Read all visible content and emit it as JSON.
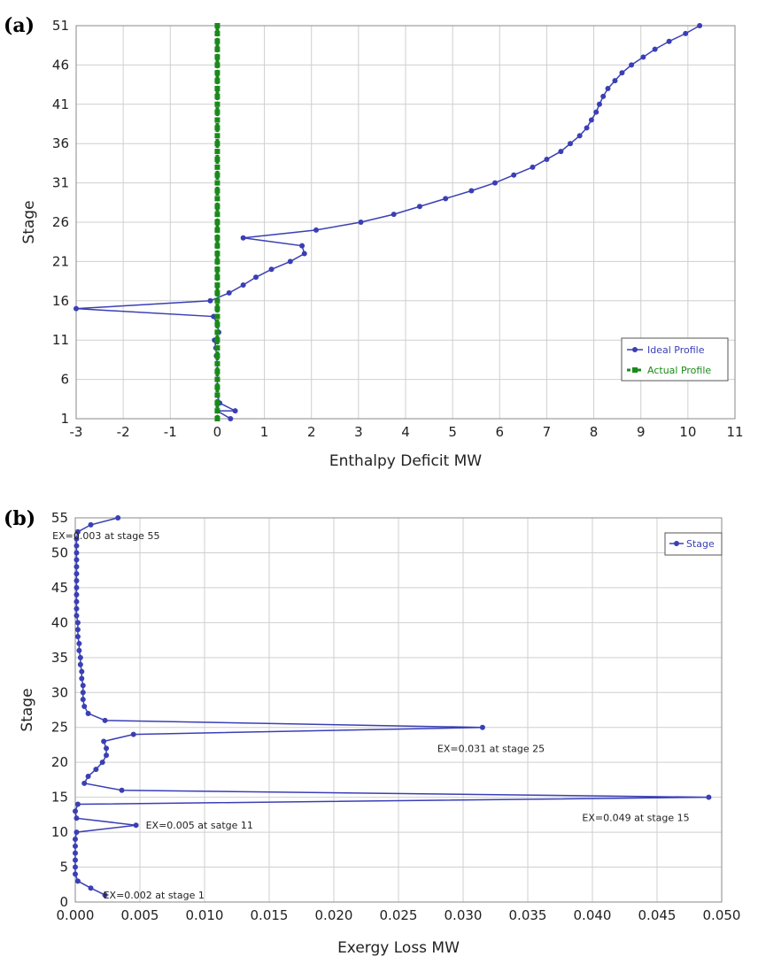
{
  "chart_data": [
    {
      "panel": "(a)",
      "type": "line",
      "xlabel": "Enthalpy Deficit MW",
      "ylabel": "Stage",
      "xlim": [
        -3,
        11
      ],
      "ylim": [
        1,
        51
      ],
      "xticks": [
        "-3",
        "-2",
        "-1",
        "0",
        "1",
        "2",
        "3",
        "4",
        "5",
        "6",
        "7",
        "8",
        "9",
        "10",
        "11"
      ],
      "yticks": [
        "1",
        "6",
        "11",
        "16",
        "21",
        "26",
        "31",
        "36",
        "41",
        "46",
        "51"
      ],
      "grid": true,
      "legend_position": "lower-right",
      "series": [
        {
          "name": "Ideal Profile",
          "color": "#3a3fb5",
          "marker": "circle",
          "points": [
            [
              0.28,
              1
            ],
            [
              0.0,
              2
            ],
            [
              0.0,
              2
            ],
            [
              0.38,
              2
            ],
            [
              0.05,
              3
            ],
            [
              0.0,
              4
            ],
            [
              0.0,
              5
            ],
            [
              0.0,
              6
            ],
            [
              0.0,
              7
            ],
            [
              0.0,
              8
            ],
            [
              -0.02,
              9
            ],
            [
              -0.03,
              10
            ],
            [
              -0.06,
              11
            ],
            [
              0.03,
              12
            ],
            [
              0.0,
              13
            ],
            [
              -0.08,
              14
            ],
            [
              -3.0,
              15
            ],
            [
              -0.15,
              16
            ],
            [
              0.25,
              17
            ],
            [
              0.55,
              18
            ],
            [
              0.82,
              19
            ],
            [
              1.15,
              20
            ],
            [
              1.55,
              21
            ],
            [
              1.85,
              22
            ],
            [
              1.8,
              23
            ],
            [
              0.55,
              24
            ],
            [
              2.1,
              25
            ],
            [
              3.05,
              26
            ],
            [
              3.75,
              27
            ],
            [
              4.3,
              28
            ],
            [
              4.85,
              29
            ],
            [
              5.4,
              30
            ],
            [
              5.9,
              31
            ],
            [
              6.3,
              32
            ],
            [
              6.7,
              33
            ],
            [
              7.0,
              34
            ],
            [
              7.3,
              35
            ],
            [
              7.5,
              36
            ],
            [
              7.7,
              37
            ],
            [
              7.85,
              38
            ],
            [
              7.95,
              39
            ],
            [
              8.05,
              40
            ],
            [
              8.12,
              41
            ],
            [
              8.2,
              42
            ],
            [
              8.3,
              43
            ],
            [
              8.45,
              44
            ],
            [
              8.6,
              45
            ],
            [
              8.8,
              46
            ],
            [
              9.05,
              47
            ],
            [
              9.3,
              48
            ],
            [
              9.6,
              49
            ],
            [
              9.95,
              50
            ],
            [
              10.25,
              51
            ]
          ]
        },
        {
          "name": "Actual Profile",
          "color": "#1a8a1a",
          "marker": "square",
          "points": [
            [
              0,
              1
            ],
            [
              0,
              2
            ],
            [
              0,
              3
            ],
            [
              0,
              4
            ],
            [
              0,
              5
            ],
            [
              0,
              6
            ],
            [
              0,
              7
            ],
            [
              0,
              8
            ],
            [
              0,
              9
            ],
            [
              0,
              10
            ],
            [
              0,
              11
            ],
            [
              0,
              12
            ],
            [
              0,
              13
            ],
            [
              0,
              14
            ],
            [
              0,
              15
            ],
            [
              0,
              16
            ],
            [
              0,
              17
            ],
            [
              0,
              18
            ],
            [
              0,
              19
            ],
            [
              0,
              20
            ],
            [
              0,
              21
            ],
            [
              0,
              22
            ],
            [
              0,
              23
            ],
            [
              0,
              24
            ],
            [
              0,
              25
            ],
            [
              0,
              26
            ],
            [
              0,
              27
            ],
            [
              0,
              28
            ],
            [
              0,
              29
            ],
            [
              0,
              30
            ],
            [
              0,
              31
            ],
            [
              0,
              32
            ],
            [
              0,
              33
            ],
            [
              0,
              34
            ],
            [
              0,
              35
            ],
            [
              0,
              36
            ],
            [
              0,
              37
            ],
            [
              0,
              38
            ],
            [
              0,
              39
            ],
            [
              0,
              40
            ],
            [
              0,
              41
            ],
            [
              0,
              42
            ],
            [
              0,
              43
            ],
            [
              0,
              44
            ],
            [
              0,
              45
            ],
            [
              0,
              46
            ],
            [
              0,
              47
            ],
            [
              0,
              48
            ],
            [
              0,
              49
            ],
            [
              0,
              50
            ],
            [
              0,
              51
            ]
          ]
        }
      ]
    },
    {
      "panel": "(b)",
      "type": "line",
      "xlabel": "Exergy Loss MW",
      "ylabel": "Stage",
      "xlim": [
        0,
        0.05
      ],
      "ylim": [
        0,
        55
      ],
      "xticks": [
        "0.000",
        "0.005",
        "0.010",
        "0.015",
        "0.020",
        "0.025",
        "0.030",
        "0.035",
        "0.040",
        "0.045",
        "0.050"
      ],
      "yticks": [
        "0",
        "5",
        "10",
        "15",
        "20",
        "25",
        "30",
        "35",
        "40",
        "45",
        "50",
        "55"
      ],
      "grid": true,
      "legend_position": "top-right",
      "series": [
        {
          "name": "Stage",
          "color": "#3a3fb5",
          "marker": "circle",
          "points": [
            [
              0.0023,
              1
            ],
            [
              0.0012,
              2
            ],
            [
              0.0002,
              3
            ],
            [
              0.0,
              4
            ],
            [
              0.0,
              5
            ],
            [
              0.0,
              6
            ],
            [
              0.0,
              7
            ],
            [
              0.0,
              8
            ],
            [
              0.0,
              9
            ],
            [
              0.0001,
              10
            ],
            [
              0.0047,
              11
            ],
            [
              0.0001,
              12
            ],
            [
              0.0,
              13
            ],
            [
              0.0002,
              14
            ],
            [
              0.049,
              15
            ],
            [
              0.0036,
              16
            ],
            [
              0.0007,
              17
            ],
            [
              0.001,
              18
            ],
            [
              0.0016,
              19
            ],
            [
              0.0021,
              20
            ],
            [
              0.0024,
              21
            ],
            [
              0.0024,
              22
            ],
            [
              0.0022,
              23
            ],
            [
              0.0045,
              24
            ],
            [
              0.0315,
              25
            ],
            [
              0.0023,
              26
            ],
            [
              0.001,
              27
            ],
            [
              0.0007,
              28
            ],
            [
              0.0006,
              29
            ],
            [
              0.0006,
              30
            ],
            [
              0.0006,
              31
            ],
            [
              0.0005,
              32
            ],
            [
              0.0005,
              33
            ],
            [
              0.0004,
              34
            ],
            [
              0.0004,
              35
            ],
            [
              0.0003,
              36
            ],
            [
              0.0003,
              37
            ],
            [
              0.0002,
              38
            ],
            [
              0.0002,
              39
            ],
            [
              0.0002,
              40
            ],
            [
              0.0001,
              41
            ],
            [
              0.0001,
              42
            ],
            [
              0.0001,
              43
            ],
            [
              0.0001,
              44
            ],
            [
              0.0001,
              45
            ],
            [
              0.0001,
              46
            ],
            [
              0.0001,
              47
            ],
            [
              0.0001,
              48
            ],
            [
              0.0001,
              49
            ],
            [
              0.0001,
              50
            ],
            [
              0.0001,
              51
            ],
            [
              0.0001,
              52
            ],
            [
              0.0002,
              53
            ],
            [
              0.0012,
              54
            ],
            [
              0.0033,
              55
            ]
          ]
        }
      ],
      "annotations": [
        {
          "text": "EX=0.003 at stage 55",
          "x": 0.0033,
          "y": 55
        },
        {
          "text": "EX=0.031 at stage 25",
          "x": 0.0315,
          "y": 25
        },
        {
          "text": "EX=0.049 at stage 15",
          "x": 0.049,
          "y": 15
        },
        {
          "text": "EX=0.005 at satge 11",
          "x": 0.0047,
          "y": 11
        },
        {
          "text": "EX=0.002 at stage 1",
          "x": 0.0023,
          "y": 1
        }
      ]
    }
  ]
}
